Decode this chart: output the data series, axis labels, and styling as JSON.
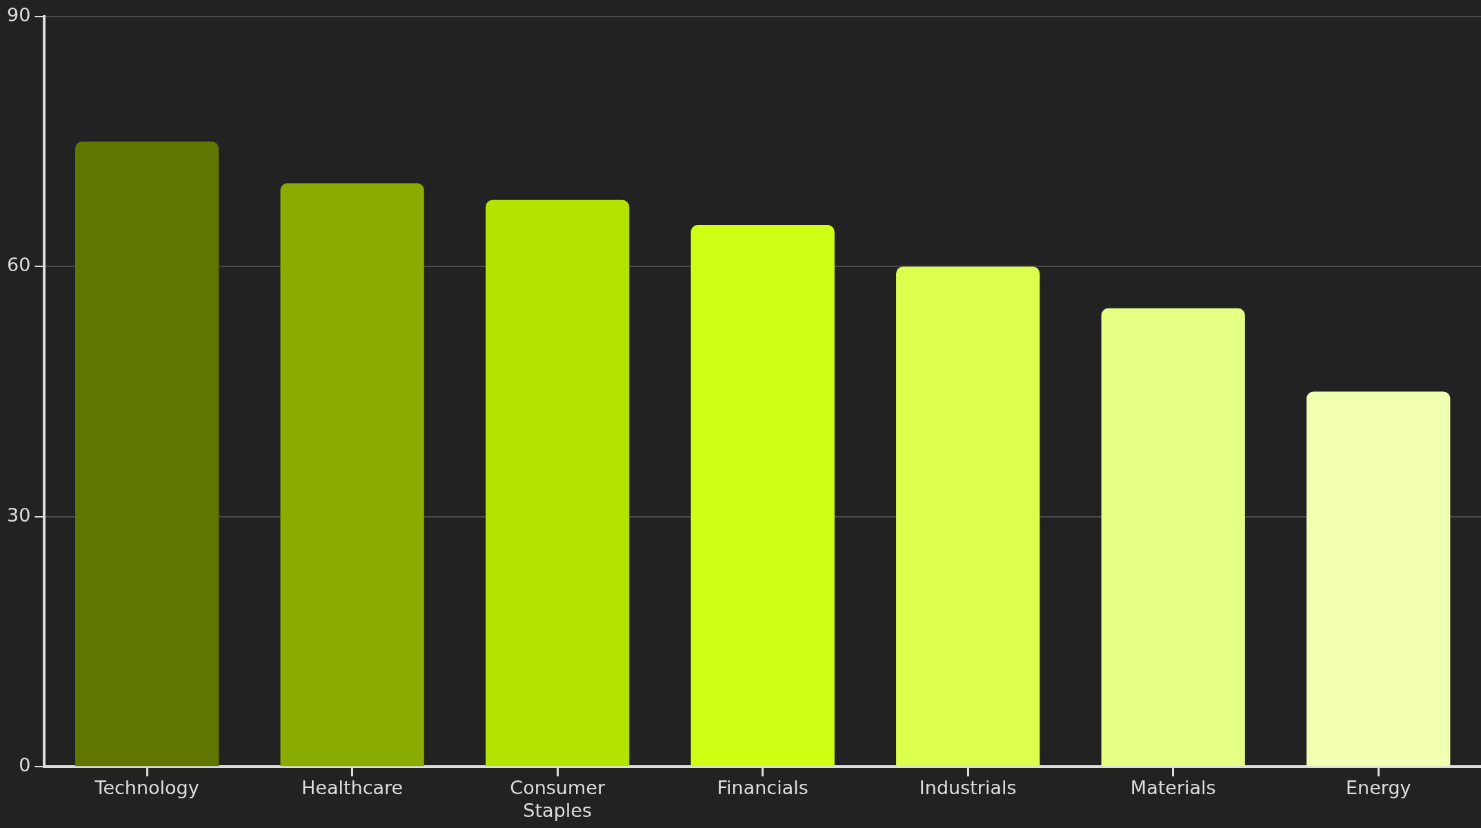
{
  "chart_data": {
    "type": "bar",
    "categories": [
      "Technology",
      "Healthcare",
      "Consumer Staples",
      "Financials",
      "Industrials",
      "Materials",
      "Energy"
    ],
    "values": [
      75,
      70,
      68,
      65,
      60,
      55,
      45
    ],
    "colors": [
      "#5f7600",
      "#8aab00",
      "#b5e300",
      "#d0ff14",
      "#dcff4d",
      "#e5ff85",
      "#f0ffb0"
    ],
    "ylim": [
      0,
      90
    ],
    "yticks": [
      0,
      30,
      60,
      90
    ],
    "grid": "y",
    "legend": false
  }
}
